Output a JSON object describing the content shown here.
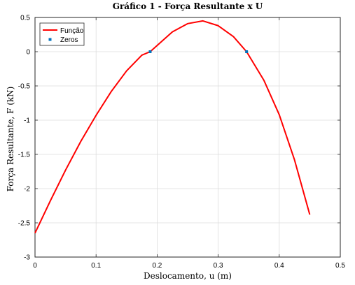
{
  "chart_data": {
    "type": "line",
    "title": "Gráfico 1 - Força Resultante x U",
    "xlabel": "Deslocamento, u (m)",
    "ylabel": "Força Resultante, F (kN)",
    "xlim": [
      0,
      0.5
    ],
    "ylim": [
      -3,
      0.5
    ],
    "xticks": [
      0,
      0.1,
      0.2,
      0.3,
      0.4,
      0.5
    ],
    "xtick_labels": [
      "0",
      "0.1",
      "0.2",
      "0.3",
      "0.4",
      "0.5"
    ],
    "yticks": [
      0.5,
      0,
      -0.5,
      -1,
      -1.5,
      -2,
      -2.5,
      -3
    ],
    "ytick_labels": [
      "0.5",
      "0",
      "-0.5",
      "-1",
      "-1.5",
      "-2",
      "-2.5",
      "-3"
    ],
    "grid": true,
    "legend_position": "top-left",
    "series": [
      {
        "name": "Função",
        "type": "line",
        "color": "#ff0000",
        "x": [
          0,
          0.025,
          0.05,
          0.075,
          0.1,
          0.125,
          0.15,
          0.175,
          0.1886,
          0.2,
          0.225,
          0.25,
          0.275,
          0.3,
          0.325,
          0.3465,
          0.375,
          0.4,
          0.425,
          0.45
        ],
        "y": [
          -2.65,
          -2.18,
          -1.73,
          -1.31,
          -0.93,
          -0.58,
          -0.28,
          -0.05,
          0.0,
          0.09,
          0.29,
          0.41,
          0.45,
          0.38,
          0.22,
          0.0,
          -0.42,
          -0.92,
          -1.58,
          -2.38
        ]
      },
      {
        "name": "Zeros",
        "type": "scatter",
        "color": "#0072bd",
        "x": [
          0.1886,
          0.3465
        ],
        "y": [
          0,
          0
        ]
      }
    ]
  }
}
